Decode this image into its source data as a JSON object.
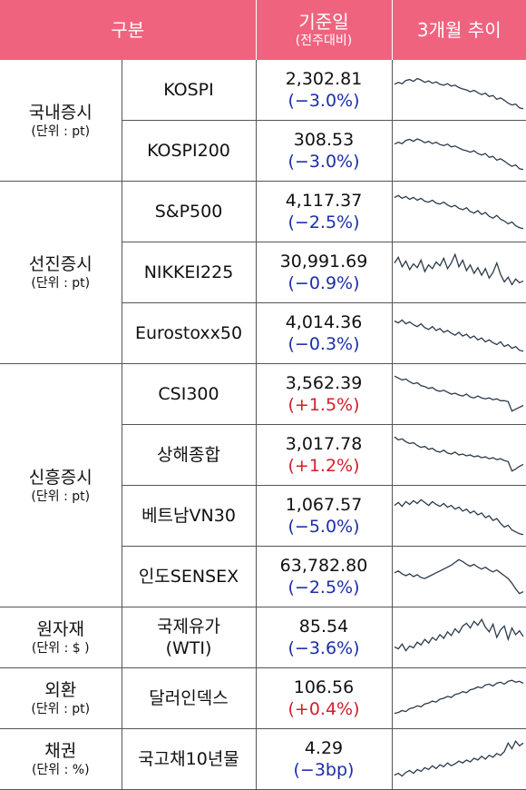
{
  "header": {
    "category": "구분",
    "base_date": "기준일",
    "base_date_sub": "(전주대비)",
    "trend": "3개월 추이"
  },
  "groups": [
    {
      "name": "국내증시",
      "unit": "(단위 : pt)",
      "rows": [
        {
          "name": "KOSPI",
          "value": "2,302.81",
          "change": "(−3.0%)",
          "dir": "neg",
          "trend": [
            0.62,
            0.66,
            0.63,
            0.7,
            0.72,
            0.68,
            0.74,
            0.71,
            0.66,
            0.69,
            0.64,
            0.67,
            0.62,
            0.6,
            0.63,
            0.58,
            0.6,
            0.55,
            0.52,
            0.5,
            0.46,
            0.49,
            0.44,
            0.4,
            0.43,
            0.36,
            0.38,
            0.3,
            0.33,
            0.28,
            0.22,
            0.18,
            0.2,
            0.12,
            0.1
          ]
        },
        {
          "name": "KOSPI200",
          "value": "308.53",
          "change": "(−3.0%)",
          "dir": "neg",
          "trend": [
            0.64,
            0.68,
            0.65,
            0.72,
            0.74,
            0.7,
            0.75,
            0.72,
            0.67,
            0.7,
            0.65,
            0.68,
            0.63,
            0.61,
            0.64,
            0.58,
            0.6,
            0.56,
            0.52,
            0.5,
            0.47,
            0.5,
            0.44,
            0.41,
            0.44,
            0.36,
            0.38,
            0.3,
            0.33,
            0.28,
            0.22,
            0.17,
            0.2,
            0.12,
            0.1
          ]
        }
      ]
    },
    {
      "name": "선진증시",
      "unit": "(단위 : pt)",
      "rows": [
        {
          "name": "S&P500",
          "value": "4,117.37",
          "change": "(−2.5%)",
          "dir": "neg",
          "trend": [
            0.8,
            0.84,
            0.78,
            0.82,
            0.76,
            0.8,
            0.74,
            0.78,
            0.72,
            0.7,
            0.74,
            0.68,
            0.66,
            0.7,
            0.64,
            0.6,
            0.63,
            0.57,
            0.54,
            0.58,
            0.5,
            0.47,
            0.52,
            0.44,
            0.48,
            0.4,
            0.36,
            0.42,
            0.34,
            0.3,
            0.24,
            0.28,
            0.2,
            0.16,
            0.14
          ]
        },
        {
          "name": "NIKKEI225",
          "value": "30,991.69",
          "change": "(−0.9%)",
          "dir": "neg",
          "trend": [
            0.7,
            0.82,
            0.62,
            0.74,
            0.56,
            0.68,
            0.6,
            0.76,
            0.52,
            0.66,
            0.58,
            0.72,
            0.64,
            0.8,
            0.58,
            0.7,
            0.88,
            0.62,
            0.76,
            0.54,
            0.66,
            0.48,
            0.6,
            0.44,
            0.58,
            0.38,
            0.5,
            0.7,
            0.46,
            0.3,
            0.4,
            0.24,
            0.36,
            0.28,
            0.32
          ]
        },
        {
          "name": "Eurostoxx50",
          "value": "4,014.36",
          "change": "(−0.3%)",
          "dir": "neg",
          "trend": [
            0.76,
            0.72,
            0.78,
            0.7,
            0.74,
            0.68,
            0.64,
            0.7,
            0.62,
            0.58,
            0.64,
            0.56,
            0.6,
            0.52,
            0.56,
            0.5,
            0.46,
            0.52,
            0.44,
            0.48,
            0.4,
            0.44,
            0.36,
            0.4,
            0.32,
            0.36,
            0.3,
            0.26,
            0.32,
            0.22,
            0.26,
            0.18,
            0.22,
            0.14,
            0.12
          ]
        }
      ]
    },
    {
      "name": "신흥증시",
      "unit": "(단위 : pt)",
      "rows": [
        {
          "name": "CSI300",
          "value": "3,562.39",
          "change": "(+1.5%)",
          "dir": "pos",
          "trend": [
            0.88,
            0.84,
            0.8,
            0.82,
            0.76,
            0.72,
            0.74,
            0.68,
            0.66,
            0.62,
            0.64,
            0.58,
            0.56,
            0.58,
            0.54,
            0.5,
            0.52,
            0.48,
            0.46,
            0.5,
            0.44,
            0.42,
            0.46,
            0.42,
            0.4,
            0.42,
            0.38,
            0.4,
            0.36,
            0.36,
            0.34,
            0.14,
            0.18,
            0.22,
            0.26
          ]
        },
        {
          "name": "상해종합",
          "value": "3,017.78",
          "change": "(+1.2%)",
          "dir": "pos",
          "trend": [
            0.88,
            0.82,
            0.84,
            0.78,
            0.74,
            0.76,
            0.7,
            0.66,
            0.68,
            0.62,
            0.64,
            0.58,
            0.56,
            0.6,
            0.54,
            0.52,
            0.56,
            0.5,
            0.52,
            0.48,
            0.5,
            0.46,
            0.48,
            0.44,
            0.46,
            0.42,
            0.44,
            0.4,
            0.42,
            0.38,
            0.36,
            0.16,
            0.2,
            0.26,
            0.3
          ]
        },
        {
          "name": "베트남VN30",
          "value": "1,067.57",
          "change": "(−5.0%)",
          "dir": "neg",
          "trend": [
            0.72,
            0.78,
            0.7,
            0.8,
            0.74,
            0.82,
            0.76,
            0.84,
            0.78,
            0.72,
            0.8,
            0.74,
            0.7,
            0.76,
            0.68,
            0.72,
            0.64,
            0.68,
            0.6,
            0.64,
            0.56,
            0.6,
            0.52,
            0.56,
            0.46,
            0.5,
            0.4,
            0.44,
            0.34,
            0.26,
            0.3,
            0.2,
            0.16,
            0.12,
            0.1
          ]
        },
        {
          "name": "인도SENSEX",
          "value": "63,782.80",
          "change": "(−2.5%)",
          "dir": "neg",
          "trend": [
            0.58,
            0.62,
            0.56,
            0.52,
            0.56,
            0.5,
            0.54,
            0.48,
            0.46,
            0.5,
            0.54,
            0.58,
            0.62,
            0.66,
            0.7,
            0.74,
            0.8,
            0.86,
            0.82,
            0.76,
            0.72,
            0.76,
            0.7,
            0.66,
            0.7,
            0.64,
            0.6,
            0.64,
            0.58,
            0.52,
            0.46,
            0.36,
            0.24,
            0.14,
            0.18
          ]
        }
      ]
    },
    {
      "name": "원자재",
      "unit": "(단위 : $ )",
      "rows": [
        {
          "name": "국제유가\n(WTI)",
          "value": "85.54",
          "change": "(−3.6%)",
          "dir": "neg",
          "trend": [
            0.3,
            0.26,
            0.36,
            0.22,
            0.32,
            0.28,
            0.4,
            0.34,
            0.46,
            0.38,
            0.5,
            0.44,
            0.56,
            0.48,
            0.62,
            0.54,
            0.68,
            0.6,
            0.74,
            0.8,
            0.7,
            0.84,
            0.76,
            0.88,
            0.72,
            0.62,
            0.78,
            0.5,
            0.66,
            0.74,
            0.46,
            0.7,
            0.56,
            0.64,
            0.52
          ]
        }
      ]
    },
    {
      "name": "외환",
      "unit": "(단위 : pt)",
      "rows": [
        {
          "name": "달러인덱스",
          "value": "106.56",
          "change": "(+0.4%)",
          "dir": "pos",
          "trend": [
            0.18,
            0.2,
            0.24,
            0.22,
            0.28,
            0.3,
            0.34,
            0.32,
            0.38,
            0.4,
            0.44,
            0.42,
            0.48,
            0.5,
            0.54,
            0.52,
            0.58,
            0.6,
            0.64,
            0.62,
            0.68,
            0.7,
            0.74,
            0.72,
            0.78,
            0.8,
            0.76,
            0.82,
            0.84,
            0.8,
            0.86,
            0.88,
            0.84,
            0.86,
            0.82
          ]
        }
      ]
    },
    {
      "name": "채권",
      "unit": "(단위 : %)",
      "rows": [
        {
          "name": "국고채10년물",
          "value": "4.29",
          "change": "(−3bp)",
          "dir": "neg",
          "trend": [
            0.16,
            0.2,
            0.14,
            0.22,
            0.26,
            0.2,
            0.28,
            0.24,
            0.32,
            0.28,
            0.36,
            0.3,
            0.38,
            0.34,
            0.42,
            0.36,
            0.4,
            0.46,
            0.42,
            0.48,
            0.44,
            0.52,
            0.48,
            0.56,
            0.5,
            0.58,
            0.54,
            0.62,
            0.58,
            0.66,
            0.84,
            0.72,
            0.88,
            0.78,
            0.84
          ]
        }
      ]
    }
  ]
}
